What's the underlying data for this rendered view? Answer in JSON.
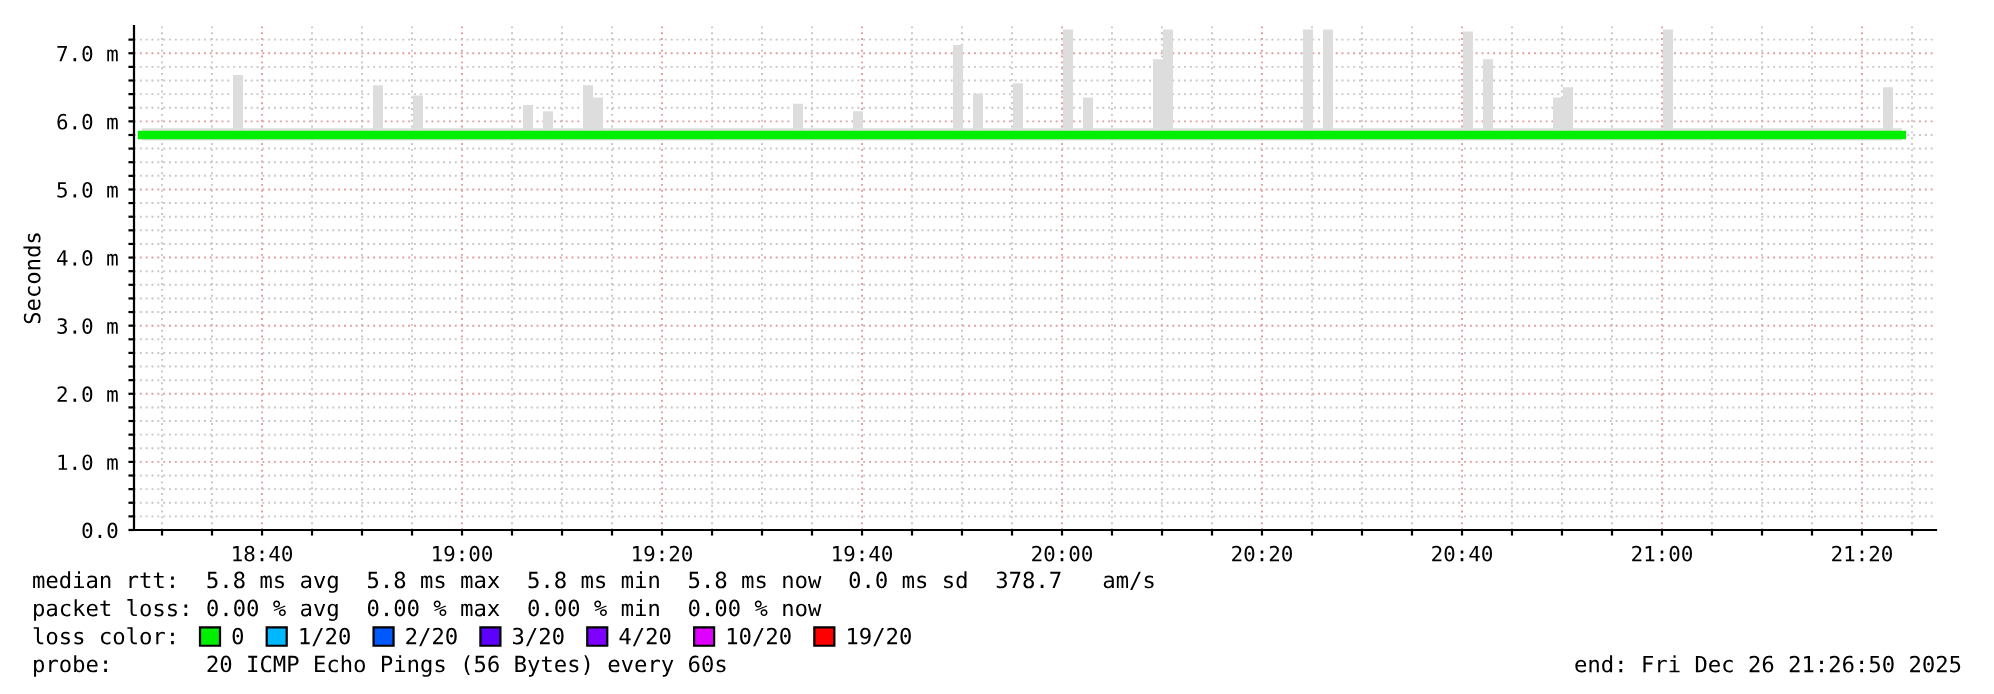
{
  "chart_data": {
    "type": "line",
    "ylabel": "Seconds",
    "legend_title": "loss color:",
    "legend": "bottom left",
    "grid": true,
    "xlim": [
      18.4533,
      21.4567
    ],
    "ylim": [
      0,
      7.4
    ],
    "xticks": [
      {
        "value": 18.5,
        "label": null
      },
      {
        "value": 18.5833,
        "label": null
      },
      {
        "value": 18.6667,
        "label": "18:40"
      },
      {
        "value": 18.75,
        "label": null
      },
      {
        "value": 18.8333,
        "label": null
      },
      {
        "value": 18.9167,
        "label": null
      },
      {
        "value": 19.0,
        "label": "19:00"
      },
      {
        "value": 19.0833,
        "label": null
      },
      {
        "value": 19.1667,
        "label": null
      },
      {
        "value": 19.25,
        "label": null
      },
      {
        "value": 19.3333,
        "label": "19:20"
      },
      {
        "value": 19.4167,
        "label": null
      },
      {
        "value": 19.5,
        "label": null
      },
      {
        "value": 19.5833,
        "label": null
      },
      {
        "value": 19.6667,
        "label": "19:40"
      },
      {
        "value": 19.75,
        "label": null
      },
      {
        "value": 19.8333,
        "label": null
      },
      {
        "value": 19.9167,
        "label": null
      },
      {
        "value": 20.0,
        "label": "20:00"
      },
      {
        "value": 20.0833,
        "label": null
      },
      {
        "value": 20.1667,
        "label": null
      },
      {
        "value": 20.25,
        "label": null
      },
      {
        "value": 20.3333,
        "label": "20:20"
      },
      {
        "value": 20.4167,
        "label": null
      },
      {
        "value": 20.5,
        "label": null
      },
      {
        "value": 20.5833,
        "label": null
      },
      {
        "value": 20.6667,
        "label": "20:40"
      },
      {
        "value": 20.75,
        "label": null
      },
      {
        "value": 20.8333,
        "label": null
      },
      {
        "value": 20.9167,
        "label": null
      },
      {
        "value": 21.0,
        "label": "21:00"
      },
      {
        "value": 21.0833,
        "label": null
      },
      {
        "value": 21.1667,
        "label": null
      },
      {
        "value": 21.25,
        "label": null
      },
      {
        "value": 21.3333,
        "label": "21:20"
      },
      {
        "value": 21.4167,
        "label": null
      }
    ],
    "yticks": [
      {
        "value": 0,
        "label": "0.0"
      },
      {
        "value": 0.2,
        "label": null
      },
      {
        "value": 0.4,
        "label": null
      },
      {
        "value": 0.6,
        "label": null
      },
      {
        "value": 0.8,
        "label": null
      },
      {
        "value": 1,
        "label": "1.0 m"
      },
      {
        "value": 1.2,
        "label": null
      },
      {
        "value": 1.4,
        "label": null
      },
      {
        "value": 1.6,
        "label": null
      },
      {
        "value": 1.8,
        "label": null
      },
      {
        "value": 2,
        "label": "2.0 m"
      },
      {
        "value": 2.2,
        "label": null
      },
      {
        "value": 2.4,
        "label": null
      },
      {
        "value": 2.6,
        "label": null
      },
      {
        "value": 2.8,
        "label": null
      },
      {
        "value": 3,
        "label": "3.0 m"
      },
      {
        "value": 3.2,
        "label": null
      },
      {
        "value": 3.4,
        "label": null
      },
      {
        "value": 3.6,
        "label": null
      },
      {
        "value": 3.8,
        "label": null
      },
      {
        "value": 4,
        "label": "4.0 m"
      },
      {
        "value": 4.2,
        "label": null
      },
      {
        "value": 4.4,
        "label": null
      },
      {
        "value": 4.6,
        "label": null
      },
      {
        "value": 4.8,
        "label": null
      },
      {
        "value": 5,
        "label": "5.0 m"
      },
      {
        "value": 5.2,
        "label": null
      },
      {
        "value": 5.4,
        "label": null
      },
      {
        "value": 5.6,
        "label": null
      },
      {
        "value": 5.8,
        "label": null
      },
      {
        "value": 6,
        "label": "6.0 m"
      },
      {
        "value": 6.2,
        "label": null
      },
      {
        "value": 6.4,
        "label": null
      },
      {
        "value": 6.6,
        "label": null
      },
      {
        "value": 6.8,
        "label": null
      },
      {
        "value": 7,
        "label": "7.0 m"
      },
      {
        "value": 7.2,
        "label": null
      }
    ],
    "series": [
      {
        "name": "0",
        "color": "#00ee00",
        "x": [
          18.4667,
          18.61,
          18.6267,
          18.6433,
          18.8433,
          18.86,
          18.8767,
          18.91,
          18.9267,
          18.9433,
          19.0933,
          19.11,
          19.1267,
          19.1433,
          19.16,
          19.1933,
          19.21,
          19.2267,
          19.2433,
          19.5433,
          19.56,
          19.5767,
          19.6433,
          19.66,
          19.6767,
          19.81,
          19.8267,
          19.8433,
          19.86,
          19.8767,
          19.91,
          19.9267,
          19.9433,
          19.9933,
          20.01,
          20.0267,
          20.0433,
          20.06,
          20.1433,
          20.16,
          20.1767,
          20.1933,
          20.3933,
          20.41,
          20.4267,
          20.4433,
          20.46,
          20.66,
          20.6767,
          20.6933,
          20.71,
          20.7267,
          20.81,
          20.8267,
          20.8433,
          20.86,
          20.9933,
          21.01,
          21.0267,
          21.36,
          21.3767,
          21.3933,
          21.4
        ],
        "values": [
          5.8,
          5.8,
          5.8,
          5.8,
          5.8,
          5.8,
          5.8,
          5.8,
          5.8,
          5.8,
          5.8,
          5.8,
          5.8,
          5.8,
          5.8,
          5.8,
          5.8,
          5.8,
          5.8,
          5.8,
          5.8,
          5.8,
          5.8,
          5.8,
          5.8,
          5.8,
          5.8,
          5.8,
          5.8,
          5.8,
          5.8,
          5.8,
          5.8,
          5.8,
          5.8,
          5.8,
          5.8,
          5.8,
          5.8,
          5.8,
          5.8,
          5.8,
          5.8,
          5.8,
          5.8,
          5.8,
          5.8,
          5.8,
          5.8,
          5.8,
          5.8,
          5.8,
          5.8,
          5.8,
          5.8,
          5.8,
          5.8,
          5.8,
          5.8,
          5.8,
          5.8,
          5.8,
          5.8
        ],
        "lower": [
          5.72,
          5.72,
          5.72,
          5.72,
          5.72,
          5.72,
          5.72,
          5.72,
          5.72,
          5.72,
          5.72,
          5.72,
          5.72,
          5.72,
          5.72,
          5.72,
          5.72,
          5.72,
          5.72,
          5.72,
          5.72,
          5.72,
          5.72,
          5.72,
          5.72,
          5.72,
          5.72,
          5.72,
          5.72,
          5.72,
          5.72,
          5.72,
          5.72,
          5.72,
          5.72,
          5.72,
          5.72,
          5.72,
          5.72,
          5.72,
          5.72,
          5.72,
          5.72,
          5.72,
          5.72,
          5.72,
          5.72,
          5.72,
          5.72,
          5.72,
          5.72,
          5.72,
          5.72,
          5.72,
          5.72,
          5.72,
          5.72,
          5.72,
          5.72,
          5.72,
          5.72,
          5.72,
          5.72
        ],
        "upper": [
          5.9,
          5.9,
          6.68,
          5.9,
          5.9,
          6.53,
          5.9,
          5.9,
          6.38,
          5.9,
          5.9,
          6.24,
          5.9,
          6.15,
          5.9,
          5.9,
          6.53,
          6.35,
          5.9,
          5.9,
          6.26,
          5.9,
          5.9,
          6.15,
          5.9,
          5.9,
          7.12,
          5.9,
          6.41,
          5.9,
          5.9,
          6.56,
          5.9,
          5.9,
          7.35,
          5.9,
          6.35,
          5.9,
          5.9,
          6.91,
          7.35,
          5.9,
          5.9,
          7.35,
          5.9,
          7.35,
          5.9,
          5.9,
          7.32,
          5.9,
          6.91,
          5.9,
          5.9,
          6.35,
          6.5,
          5.9,
          5.9,
          7.35,
          5.9,
          5.9,
          6.5,
          5.9,
          5.9
        ]
      },
      {
        "name": "1/20",
        "color": "#00b8ff"
      },
      {
        "name": "2/20",
        "color": "#0059ff"
      },
      {
        "name": "3/20",
        "color": "#5e00ff"
      },
      {
        "name": "4/20",
        "color": "#7e00ff"
      },
      {
        "name": "10/20",
        "color": "#dd00ff"
      },
      {
        "name": "19/20",
        "color": "#ff0000"
      }
    ],
    "annotations": [
      "median rtt:  5.8 ms avg  5.8 ms max  5.8 ms min  5.8 ms now  0.0 ms sd  378.7   am/s",
      "packet loss: 0.00 % avg  0.00 % max  0.00 % min  0.00 % now",
      "probe:       20 ICMP Echo Pings (56 Bytes) every 60s",
      "end: Fri Dec 26 21:26:50 2025"
    ]
  }
}
